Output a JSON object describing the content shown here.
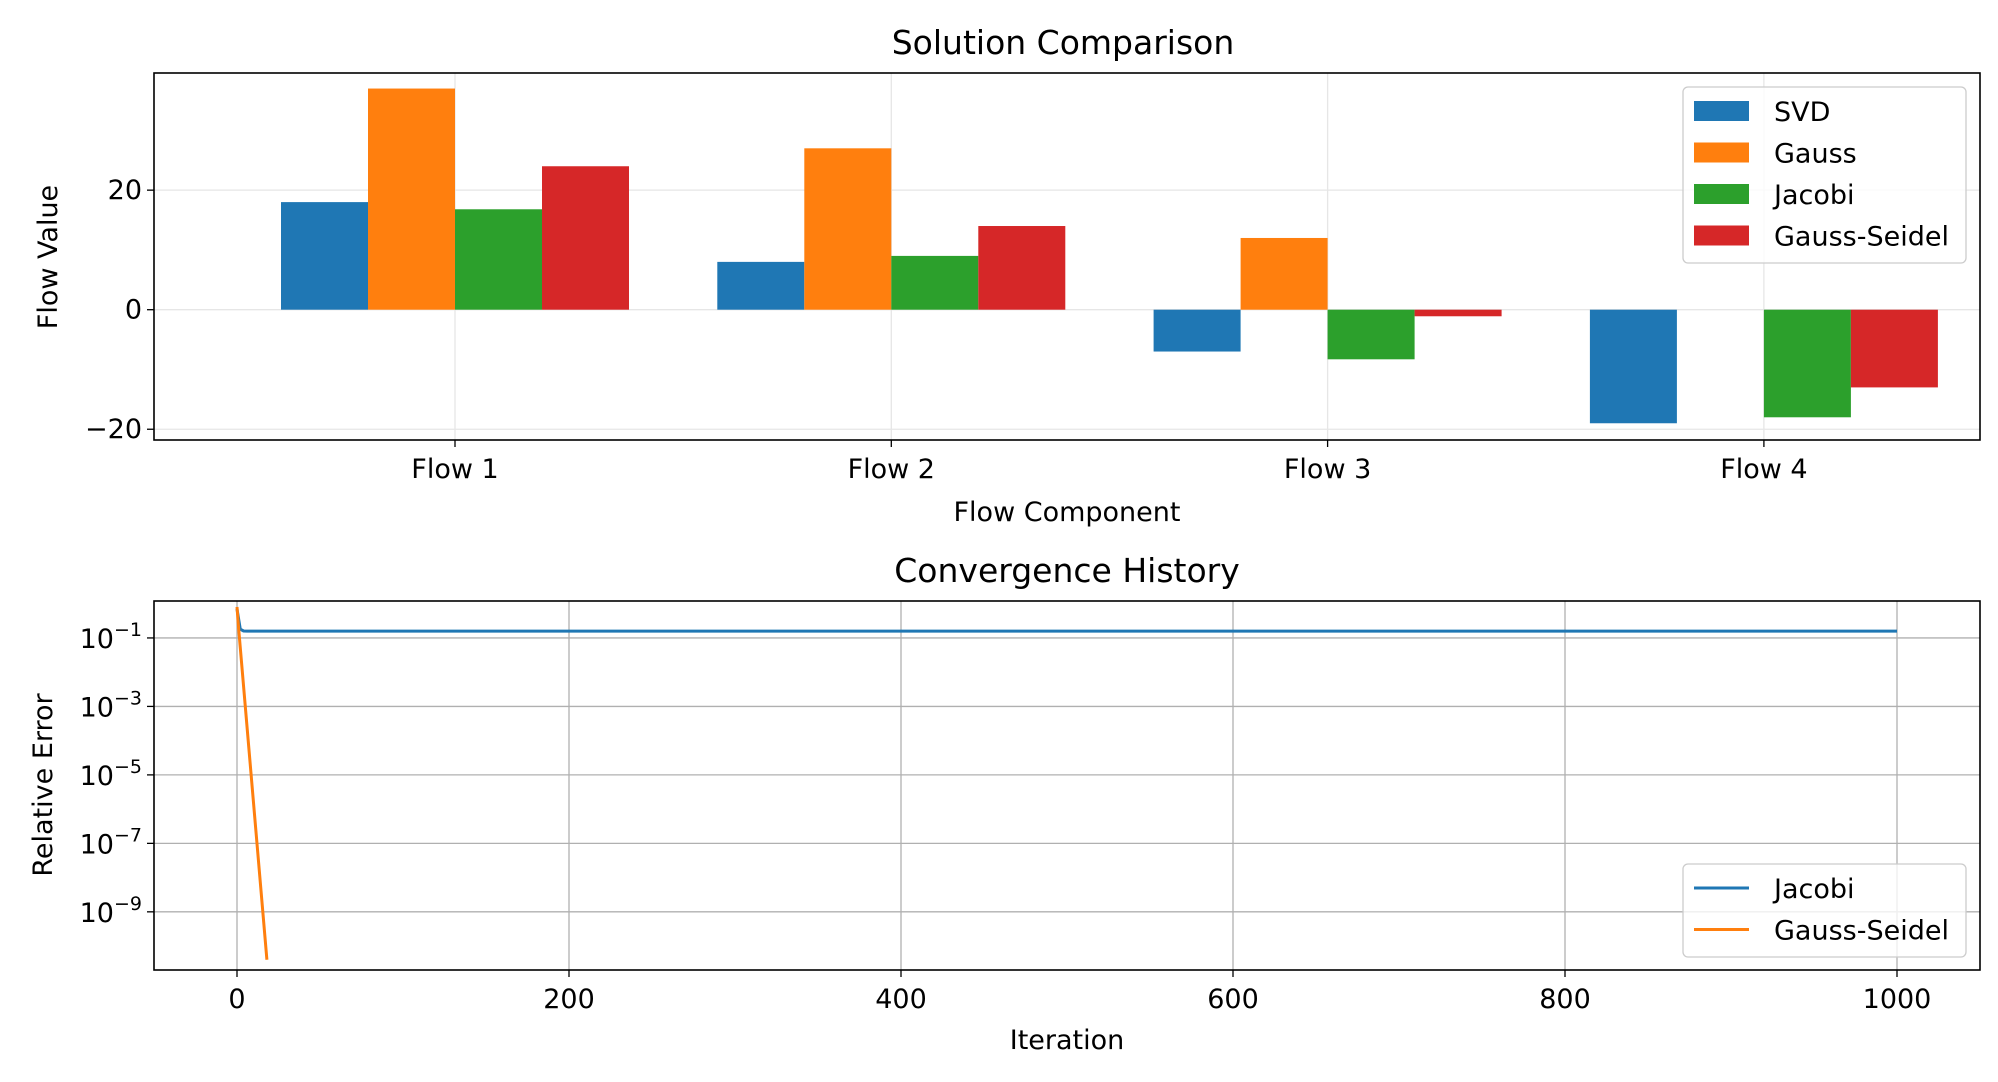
{
  "chart_data": [
    {
      "type": "bar",
      "title": "Solution Comparison",
      "xlabel": "Flow Component",
      "ylabel": "Flow Value",
      "categories": [
        "Flow 1",
        "Flow 2",
        "Flow 3",
        "Flow 4"
      ],
      "series": [
        {
          "name": "SVD",
          "color": "#1f77b4",
          "values": [
            18.0,
            8.0,
            -7.0,
            -19.0
          ]
        },
        {
          "name": "Gauss",
          "color": "#ff7f0e",
          "values": [
            37.0,
            27.0,
            12.0,
            0.0
          ]
        },
        {
          "name": "Jacobi",
          "color": "#2ca02c",
          "values": [
            16.8,
            9.0,
            -8.3,
            -18.0
          ]
        },
        {
          "name": "Gauss-Seidel",
          "color": "#d62728",
          "values": [
            24.0,
            14.0,
            -1.1,
            -13.0
          ]
        }
      ],
      "ylim": [
        -21.8,
        39.6
      ],
      "yticks": [
        {
          "value": -20,
          "label": "−20"
        },
        {
          "value": 0,
          "label": "0"
        },
        {
          "value": 20,
          "label": "20"
        }
      ],
      "grid": true,
      "legend_position": "top-right"
    },
    {
      "type": "line",
      "title": "Convergence History",
      "xlabel": "Iteration",
      "ylabel": "Relative Error",
      "yscale": "log",
      "xlim": [
        -50,
        1050
      ],
      "ylim": [
        2e-11,
        1.2
      ],
      "xticks": [
        0,
        200,
        400,
        600,
        800,
        1000
      ],
      "yticks": [
        {
          "value": 0.1,
          "base": "10",
          "exp": "−1"
        },
        {
          "value": 0.001,
          "base": "10",
          "exp": "−3"
        },
        {
          "value": 1e-05,
          "base": "10",
          "exp": "−5"
        },
        {
          "value": 1e-07,
          "base": "10",
          "exp": "−7"
        },
        {
          "value": 1e-09,
          "base": "10",
          "exp": "−9"
        }
      ],
      "series": [
        {
          "name": "Jacobi",
          "color": "#1f77b4",
          "x": [
            0,
            2,
            4,
            6,
            1000
          ],
          "y": [
            0.7,
            0.18,
            0.16,
            0.158,
            0.158
          ]
        },
        {
          "name": "Gauss-Seidel",
          "color": "#ff7f0e",
          "x": [
            0,
            1,
            18
          ],
          "y": [
            0.8,
            0.18,
            4e-11
          ]
        }
      ],
      "grid": true,
      "legend_position": "bottom-right"
    }
  ]
}
